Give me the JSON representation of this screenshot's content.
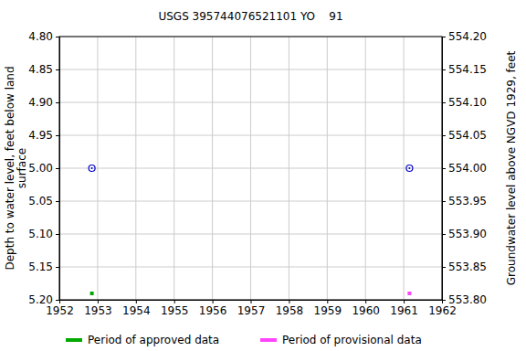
{
  "chart_data": {
    "type": "scatter",
    "title": "USGS 395744076521101 YO    91",
    "ylabel": [
      "Depth to water level, feet below land",
      "surface"
    ],
    "y2label": "Groundwater level above NGVD 1929, feet",
    "color": "#0000cc",
    "marker": "circle",
    "grid": true,
    "legend": "bottom",
    "xlim": [
      1952,
      1962
    ],
    "xticks": [
      1952,
      1953,
      1954,
      1955,
      1956,
      1957,
      1958,
      1959,
      1960,
      1961,
      1962
    ],
    "ylim": [
      5.2,
      4.8
    ],
    "yticks": [
      {
        "value": 4.8,
        "label": "4.80"
      },
      {
        "value": 4.85,
        "label": "4.85"
      },
      {
        "value": 4.9,
        "label": "4.90"
      },
      {
        "value": 4.95,
        "label": "4.95"
      },
      {
        "value": 5.0,
        "label": "5.00"
      },
      {
        "value": 5.05,
        "label": "5.05"
      },
      {
        "value": 5.1,
        "label": "5.10"
      },
      {
        "value": 5.15,
        "label": "5.15"
      },
      {
        "value": 5.2,
        "label": "5.20"
      }
    ],
    "y2lim": [
      553.8,
      554.2
    ],
    "y2ticks": [
      {
        "value": 554.2,
        "label": "554.20"
      },
      {
        "value": 554.15,
        "label": "554.15"
      },
      {
        "value": 554.1,
        "label": "554.10"
      },
      {
        "value": 554.05,
        "label": "554.05"
      },
      {
        "value": 554.0,
        "label": "554.00"
      },
      {
        "value": 553.95,
        "label": "553.95"
      },
      {
        "value": 553.9,
        "label": "553.90"
      },
      {
        "value": 553.85,
        "label": "553.85"
      },
      {
        "value": 553.8,
        "label": "553.80"
      }
    ],
    "series": [
      {
        "name": "Period of approved data",
        "color": "#00aa00",
        "x": [
          1952.85
        ],
        "values": [
          5.0
        ]
      },
      {
        "name": "Period of provisional data",
        "color": "#ff44ff",
        "x": [
          1961.15
        ],
        "values": [
          5.0
        ]
      }
    ]
  }
}
